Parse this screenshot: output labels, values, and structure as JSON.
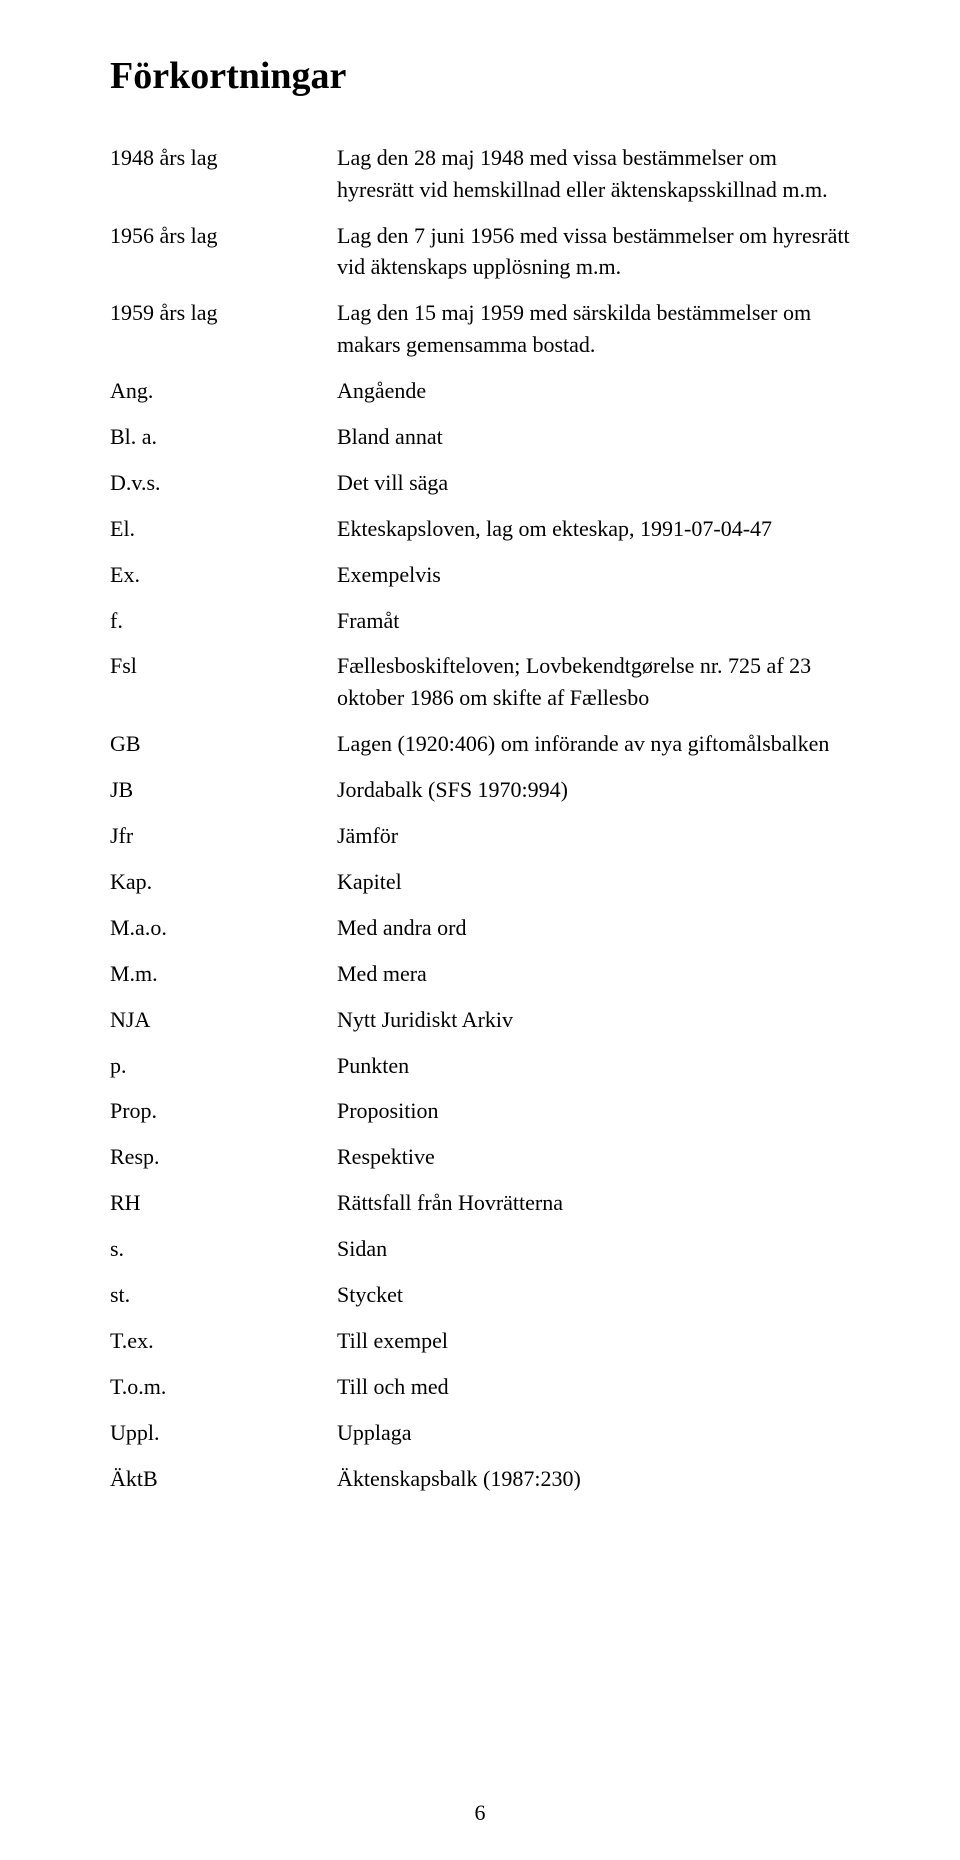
{
  "title": "Förkortningar",
  "page_number": "6",
  "entries": [
    {
      "term": "1948 års lag",
      "def": "Lag den 28 maj 1948 med vissa bestämmelser om hyresrätt vid hemskillnad eller äktenskapsskillnad m.m."
    },
    {
      "term": "1956 års lag",
      "def": "Lag den 7 juni 1956 med vissa bestämmelser om hyresrätt vid äktenskaps upplösning m.m."
    },
    {
      "term": "1959 års lag",
      "def": "Lag den 15 maj 1959 med särskilda bestämmelser om makars gemensamma bostad."
    },
    {
      "term": "Ang.",
      "def": "Angående"
    },
    {
      "term": "Bl. a.",
      "def": "Bland annat"
    },
    {
      "term": "D.v.s.",
      "def": "Det vill säga"
    },
    {
      "term": "El.",
      "def": "Ekteskapsloven, lag om ekteskap, 1991-07-04-47"
    },
    {
      "term": "Ex.",
      "def": "Exempelvis"
    },
    {
      "term": "f.",
      "def": "Framåt"
    },
    {
      "term": "Fsl",
      "def": "Fællesboskifteloven; Lovbekendtgørelse nr. 725 af 23 oktober 1986 om skifte af Fællesbo"
    },
    {
      "term": "GB",
      "def": "Lagen (1920:406) om införande av nya giftomålsbalken"
    },
    {
      "term": "JB",
      "def": "Jordabalk (SFS 1970:994)"
    },
    {
      "term": "Jfr",
      "def": "Jämför"
    },
    {
      "term": "Kap.",
      "def": "Kapitel"
    },
    {
      "term": "M.a.o.",
      "def": "Med andra ord"
    },
    {
      "term": "M.m.",
      "def": "Med mera"
    },
    {
      "term": "NJA",
      "def": "Nytt Juridiskt Arkiv"
    },
    {
      "term": "p.",
      "def": "Punkten"
    },
    {
      "term": "Prop.",
      "def": "Proposition"
    },
    {
      "term": "Resp.",
      "def": "Respektive"
    },
    {
      "term": "RH",
      "def": "Rättsfall från Hovrätterna"
    },
    {
      "term": "s.",
      "def": "Sidan"
    },
    {
      "term": "st.",
      "def": "Stycket"
    },
    {
      "term": "T.ex.",
      "def": "Till exempel"
    },
    {
      "term": "T.o.m.",
      "def": "Till och med"
    },
    {
      "term": "Uppl.",
      "def": "Upplaga"
    },
    {
      "term": "ÄktB",
      "def": "Äktenskapsbalk (1987:230)"
    }
  ]
}
